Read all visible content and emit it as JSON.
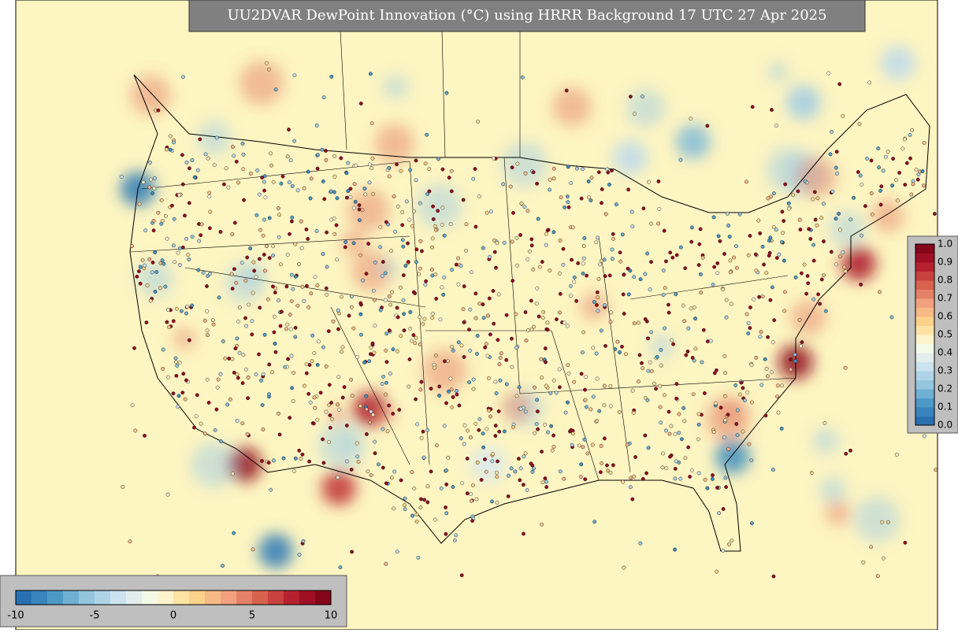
{
  "title": "UU2DVAR DewPoint Innovation (°C) using HRRR Background 17 UTC 27 Apr 2025",
  "horizontal_colorbar": {
    "ticks": [
      "-10",
      "-5",
      "0",
      "5",
      "10"
    ]
  },
  "vertical_colorbar": {
    "ticks": [
      "0.0",
      "0.1",
      "0.2",
      "0.3",
      "0.4",
      "0.5",
      "0.6",
      "0.7",
      "0.8",
      "0.9",
      "1.0"
    ]
  }
}
